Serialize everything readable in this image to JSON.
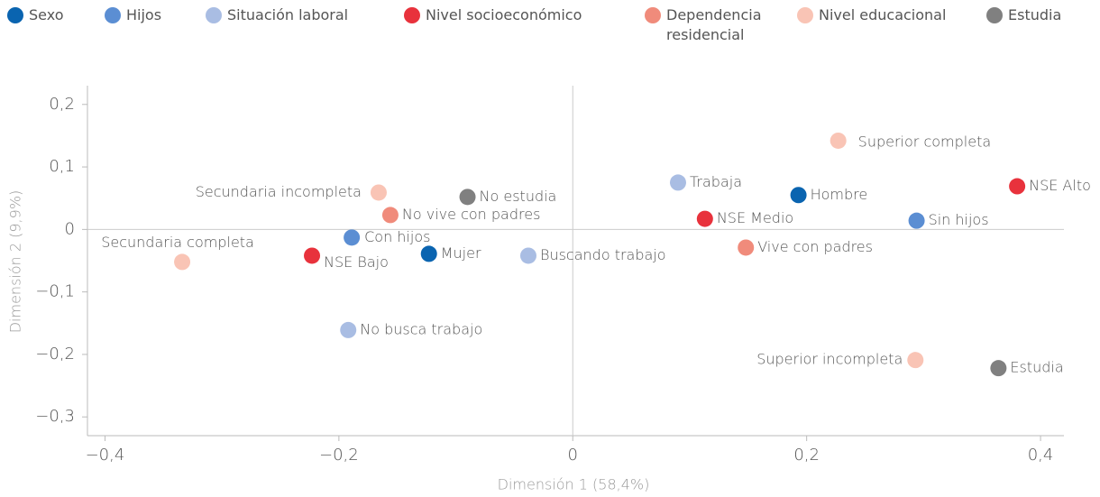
{
  "chart_data": {
    "type": "scatter",
    "xlabel": "Dimensión 1 (58,4%)",
    "ylabel": "Dimensión 2 (9,9%)",
    "xlim": [
      -0.415,
      0.42
    ],
    "ylim": [
      -0.33,
      0.23
    ],
    "xticks": [
      {
        "value": -0.4,
        "label": "−0,4"
      },
      {
        "value": -0.2,
        "label": "−0,2"
      },
      0,
      {
        "value": 0.2,
        "label": "0,2"
      },
      {
        "value": 0.4,
        "label": "0,4"
      }
    ],
    "yticks": [
      {
        "value": -0.3,
        "label": "−0,3"
      },
      {
        "value": -0.2,
        "label": "−0,2"
      },
      {
        "value": -0.1,
        "label": "−0,1"
      },
      0,
      {
        "value": 0.1,
        "label": "0,1"
      },
      {
        "value": 0.2,
        "label": "0,2"
      }
    ],
    "series": [
      {
        "name": "Sexo",
        "color": "#0a64b0",
        "labels": [
          "Hombre",
          "Mujer"
        ],
        "x": [
          0.193,
          -0.123
        ],
        "values": [
          0.055,
          -0.039
        ]
      },
      {
        "name": "Hijos",
        "color": "#5b8ed3",
        "labels": [
          "Sin hijos",
          "Con hijos"
        ],
        "x": [
          0.294,
          -0.189
        ],
        "values": [
          0.014,
          -0.013
        ]
      },
      {
        "name": "Situación laboral",
        "color": "#a9bde3",
        "labels": [
          "Trabaja",
          "Buscando trabajo",
          "No busca trabajo"
        ],
        "x": [
          0.09,
          -0.038,
          -0.192
        ],
        "values": [
          0.075,
          -0.042,
          -0.161
        ]
      },
      {
        "name": "Nivel socioeconómico",
        "color": "#e8323c",
        "labels": [
          "NSE Alto",
          "NSE Medio",
          "NSE Bajo"
        ],
        "x": [
          0.38,
          0.113,
          -0.223
        ],
        "values": [
          0.069,
          0.017,
          -0.042
        ]
      },
      {
        "name": "Dependencia residencial",
        "color": "#f08b7b",
        "labels": [
          "No vive con padres",
          "Vive con padres"
        ],
        "x": [
          -0.156,
          0.148
        ],
        "values": [
          0.023,
          -0.029
        ]
      },
      {
        "name": "Nivel educacional",
        "color": "#f9c4b5",
        "labels": [
          "Superior completa",
          "Secundaria incompleta",
          "Secundaria completa",
          "Superior incompleta"
        ],
        "x": [
          0.227,
          -0.166,
          -0.334,
          0.293
        ],
        "values": [
          0.142,
          0.059,
          -0.052,
          -0.209
        ]
      },
      {
        "name": "Estudia",
        "color": "#808080",
        "labels": [
          "No estudia",
          "Estudia"
        ],
        "x": [
          -0.09,
          0.364
        ],
        "values": [
          0.052,
          -0.222
        ]
      }
    ]
  }
}
